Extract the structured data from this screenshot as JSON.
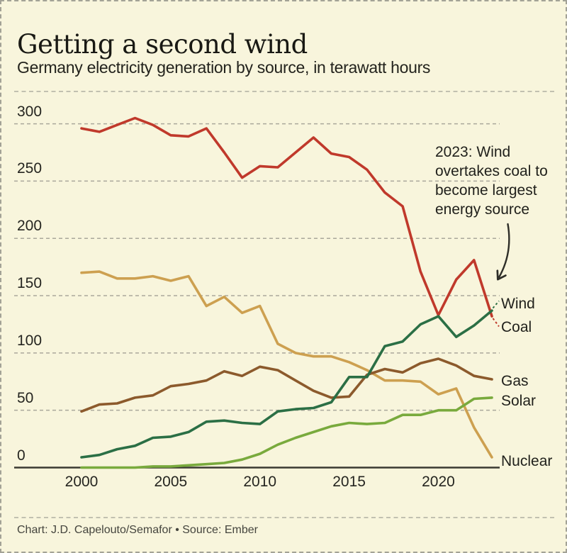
{
  "frame": {
    "background_color": "#f8f5dc",
    "border_color": "#a3a296",
    "gridline_color": "#aaa89b",
    "axis_color": "#3a3a32",
    "arrow_color": "#2e2e28"
  },
  "header": {
    "title": "Getting a second wind",
    "subtitle": "Germany electricity generation by source, in terawatt hours"
  },
  "annotation": {
    "text": "2023: Wind\novertakes coal to\nbecome largest\nenergy source"
  },
  "footer": {
    "credit": "Chart: J.D. Capelouto/Semafor • Source: Ember"
  },
  "chart_data": {
    "type": "line",
    "title": "Getting a second wind",
    "subtitle": "Germany electricity generation by source, in terawatt hours",
    "xlabel": "",
    "ylabel": "terawatt hours",
    "x": [
      2000,
      2001,
      2002,
      2003,
      2004,
      2005,
      2006,
      2007,
      2008,
      2009,
      2010,
      2011,
      2012,
      2013,
      2014,
      2015,
      2016,
      2017,
      2018,
      2019,
      2020,
      2021,
      2022,
      2023
    ],
    "xticks": [
      2000,
      2005,
      2010,
      2015,
      2020
    ],
    "yticks": [
      0,
      50,
      100,
      150,
      200,
      250,
      300
    ],
    "ylim": [
      0,
      310
    ],
    "grid": "horizontal-dashed",
    "legend_position": "right-of-line-ends",
    "series": [
      {
        "name": "Nuclear",
        "color": "#cda050",
        "leader": false,
        "values": [
          170,
          171,
          165,
          165,
          167,
          163,
          167,
          141,
          149,
          135,
          141,
          108,
          100,
          97,
          97,
          92,
          85,
          76,
          76,
          75,
          64,
          69,
          35,
          9
        ]
      },
      {
        "name": "Gas",
        "color": "#8c5a2c",
        "leader": false,
        "values": [
          49,
          55,
          56,
          61,
          63,
          71,
          73,
          76,
          84,
          80,
          88,
          85,
          76,
          67,
          61,
          62,
          81,
          86,
          83,
          91,
          95,
          89,
          80,
          77
        ]
      },
      {
        "name": "Solar",
        "color": "#79aa3d",
        "leader": false,
        "values": [
          0,
          0,
          0,
          0,
          1,
          1,
          2,
          3,
          4,
          7,
          12,
          20,
          26,
          31,
          36,
          39,
          38,
          39,
          46,
          46,
          50,
          50,
          60,
          61
        ]
      },
      {
        "name": "Coal",
        "color": "#c0392b",
        "leader": true,
        "values": [
          296,
          293,
          299,
          305,
          299,
          290,
          289,
          296,
          275,
          253,
          263,
          262,
          275,
          288,
          274,
          271,
          260,
          240,
          228,
          171,
          133,
          164,
          181,
          132
        ]
      },
      {
        "name": "Wind",
        "color": "#2b6f45",
        "leader": true,
        "values": [
          9,
          11,
          16,
          19,
          26,
          27,
          31,
          40,
          41,
          39,
          38,
          49,
          51,
          52,
          57,
          79,
          79,
          106,
          110,
          125,
          132,
          114,
          124,
          137
        ]
      }
    ]
  }
}
